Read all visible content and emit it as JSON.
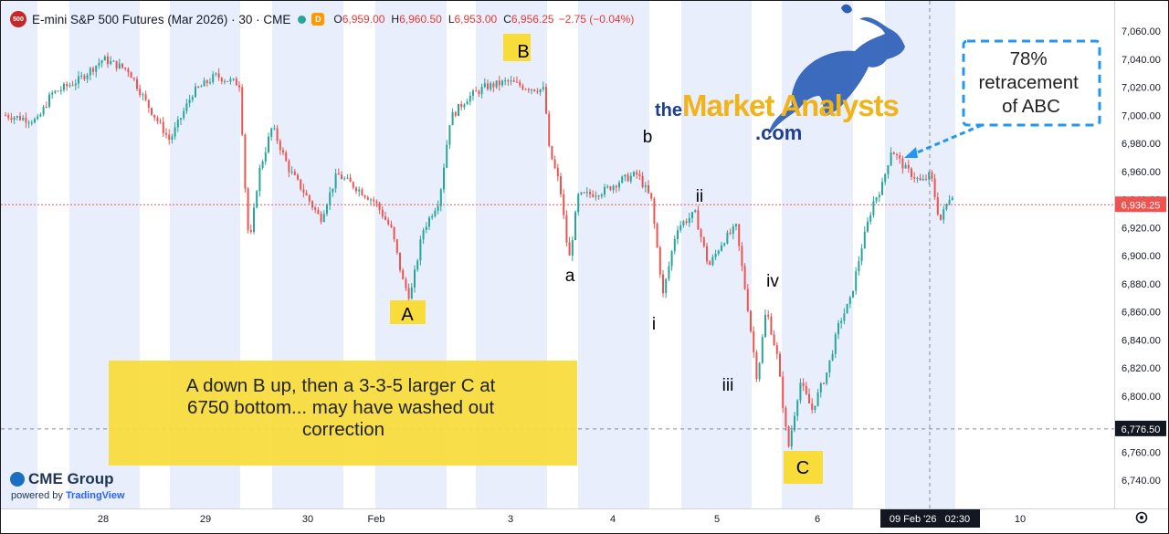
{
  "header": {
    "symbol_badge": "500",
    "title": "E-mini S&P 500 Futures (Mar 2026) · 30 · CME",
    "badge_letter": "D",
    "ohlc": [
      {
        "k": "O",
        "v": "6,959.00"
      },
      {
        "k": "H",
        "v": "6,960.50"
      },
      {
        "k": "L",
        "v": "6,953.00"
      },
      {
        "k": "C",
        "v": "6,956.25"
      }
    ],
    "change": "−2.75 (−0.04%)"
  },
  "branding": {
    "cme": "CME Group",
    "powered_prefix": "powered by",
    "powered_brand": "TradingView",
    "logo_the": "the",
    "logo_main": "Market Analysts",
    "logo_com": ".com"
  },
  "colors": {
    "up": "#26a69a",
    "down": "#ef5350",
    "session_band": "#e8eefc",
    "annotation_yellow": "#f7dc3a",
    "callout_blue": "#2196f3"
  },
  "chart_data": {
    "type": "candlestick",
    "ylim": [
      6730,
      7070
    ],
    "y_ticks": [
      "7,060.00",
      "7,040.00",
      "7,020.00",
      "7,000.00",
      "6,980.00",
      "6,960.00",
      "6,940.00",
      "6,920.00",
      "6,900.00",
      "6,880.00",
      "6,860.00",
      "6,840.00",
      "6,820.00",
      "6,800.00",
      "6,780.00",
      "6,760.00",
      "6,740.00"
    ],
    "x_ticks": [
      "28",
      "29",
      "30",
      "Feb",
      "3",
      "4",
      "5",
      "6",
      "10"
    ],
    "last_price_label": "6,936.25",
    "last_price": 6936.25,
    "crosshair_price_label": "6,776.50",
    "crosshair_price": 6776.5,
    "crosshair_time_label": "09 Feb '26   02:30",
    "price_path": [
      {
        "x": 5,
        "y": 7000
      },
      {
        "x": 40,
        "y": 6996
      },
      {
        "x": 55,
        "y": 7015
      },
      {
        "x": 85,
        "y": 7025
      },
      {
        "x": 112,
        "y": 7040
      },
      {
        "x": 140,
        "y": 7032
      },
      {
        "x": 160,
        "y": 7008
      },
      {
        "x": 185,
        "y": 6982
      },
      {
        "x": 210,
        "y": 7016
      },
      {
        "x": 235,
        "y": 7028
      },
      {
        "x": 262,
        "y": 7022
      },
      {
        "x": 266,
        "y": 6962
      },
      {
        "x": 272,
        "y": 6905
      },
      {
        "x": 282,
        "y": 6958
      },
      {
        "x": 297,
        "y": 6992
      },
      {
        "x": 315,
        "y": 6962
      },
      {
        "x": 332,
        "y": 6945
      },
      {
        "x": 350,
        "y": 6926
      },
      {
        "x": 368,
        "y": 6958
      },
      {
        "x": 390,
        "y": 6948
      },
      {
        "x": 410,
        "y": 6938
      },
      {
        "x": 428,
        "y": 6918
      },
      {
        "x": 440,
        "y": 6882
      },
      {
        "x": 448,
        "y": 6870
      },
      {
        "x": 462,
        "y": 6918
      },
      {
        "x": 480,
        "y": 6940
      },
      {
        "x": 492,
        "y": 6998
      },
      {
        "x": 510,
        "y": 7012
      },
      {
        "x": 530,
        "y": 7020
      },
      {
        "x": 555,
        "y": 7024
      },
      {
        "x": 575,
        "y": 7020
      },
      {
        "x": 595,
        "y": 7018
      },
      {
        "x": 600,
        "y": 6976
      },
      {
        "x": 612,
        "y": 6950
      },
      {
        "x": 622,
        "y": 6896
      },
      {
        "x": 632,
        "y": 6942
      },
      {
        "x": 660,
        "y": 6946
      },
      {
        "x": 680,
        "y": 6954
      },
      {
        "x": 697,
        "y": 6958
      },
      {
        "x": 712,
        "y": 6940
      },
      {
        "x": 725,
        "y": 6872
      },
      {
        "x": 740,
        "y": 6920
      },
      {
        "x": 760,
        "y": 6930
      },
      {
        "x": 775,
        "y": 6892
      },
      {
        "x": 790,
        "y": 6910
      },
      {
        "x": 805,
        "y": 6920
      },
      {
        "x": 818,
        "y": 6862
      },
      {
        "x": 828,
        "y": 6812
      },
      {
        "x": 838,
        "y": 6862
      },
      {
        "x": 850,
        "y": 6828
      },
      {
        "x": 862,
        "y": 6762
      },
      {
        "x": 875,
        "y": 6810
      },
      {
        "x": 888,
        "y": 6790
      },
      {
        "x": 905,
        "y": 6818
      },
      {
        "x": 918,
        "y": 6852
      },
      {
        "x": 930,
        "y": 6868
      },
      {
        "x": 942,
        "y": 6905
      },
      {
        "x": 955,
        "y": 6938
      },
      {
        "x": 965,
        "y": 6950
      },
      {
        "x": 975,
        "y": 6976
      },
      {
        "x": 990,
        "y": 6962
      },
      {
        "x": 1008,
        "y": 6952
      },
      {
        "x": 1018,
        "y": 6958
      },
      {
        "x": 1028,
        "y": 6924
      },
      {
        "x": 1040,
        "y": 6944
      }
    ],
    "wave_labels": [
      {
        "text": "A",
        "boxed": true
      },
      {
        "text": "B",
        "boxed": true
      },
      {
        "text": "C",
        "boxed": true
      },
      {
        "text": "a",
        "boxed": false
      },
      {
        "text": "b",
        "boxed": false
      },
      {
        "text": "i",
        "boxed": false
      },
      {
        "text": "ii",
        "boxed": false
      },
      {
        "text": "iii",
        "boxed": false
      },
      {
        "text": "iv",
        "boxed": false
      }
    ],
    "note": "A down B up, then a 3-3-5 larger C at 6750 bottom... may have washed out correction",
    "callout": "78% retracement of ABC"
  }
}
